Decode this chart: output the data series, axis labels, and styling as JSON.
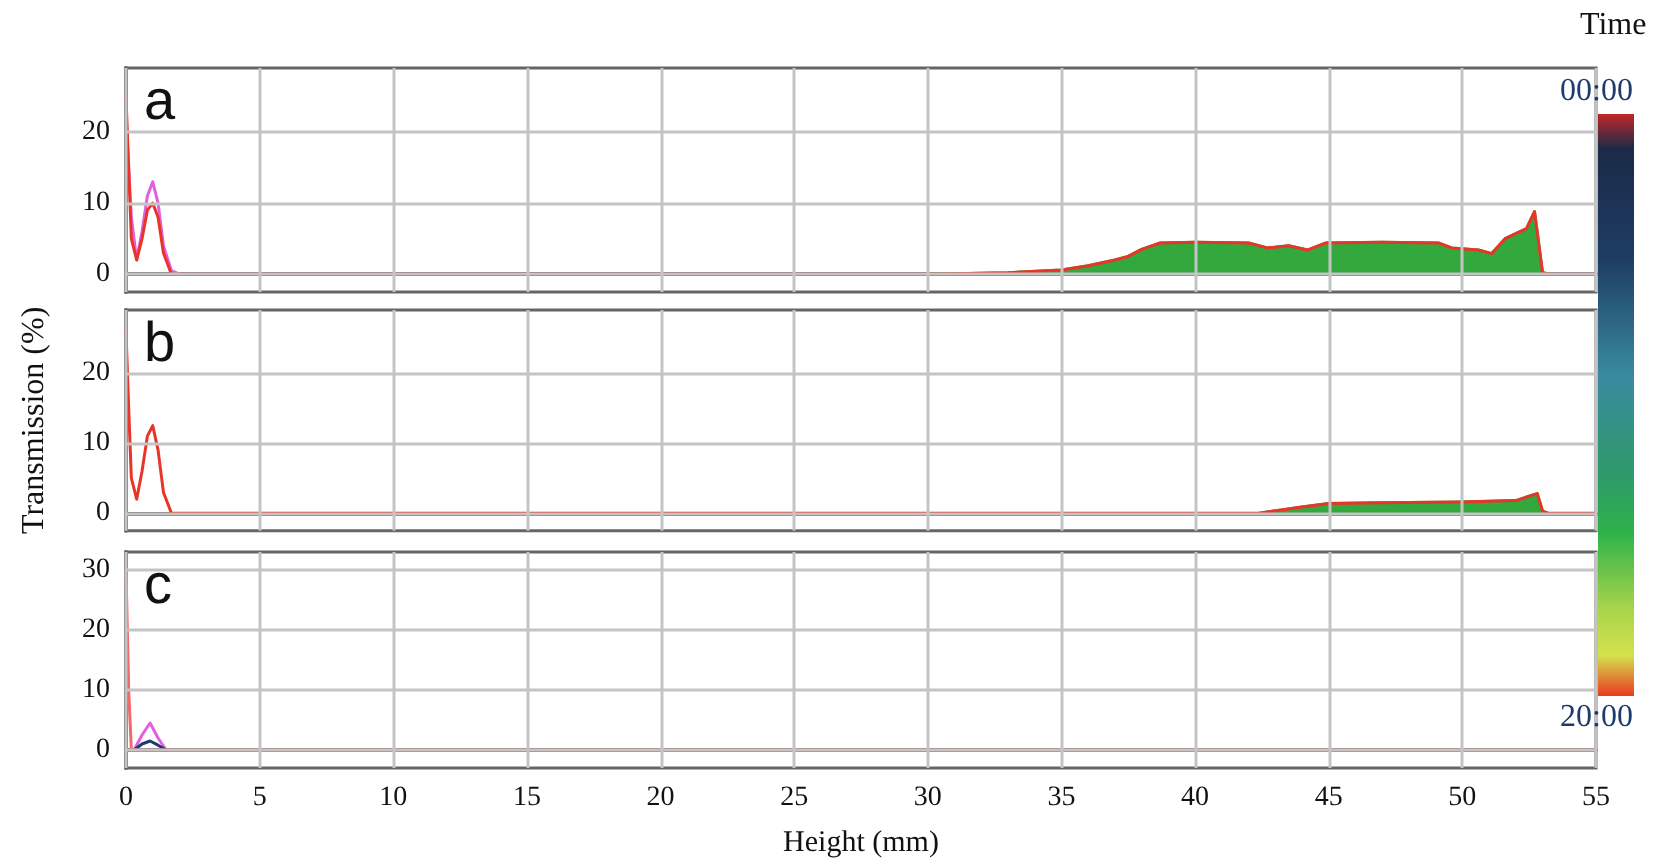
{
  "chart_data": [
    {
      "type": "line",
      "annotations": [
        "a",
        "00:00",
        "20:00"
      ],
      "clabel": "Time",
      "xlim": [
        0,
        55
      ],
      "xticks": [
        0,
        5,
        10,
        15,
        20,
        25,
        30,
        35,
        40,
        45,
        50,
        55
      ],
      "ylim": [
        -2.5,
        29
      ],
      "yticks": [
        0,
        10,
        20
      ],
      "grid": true,
      "tick_labels": "y",
      "series": [
        {
          "type": "area",
          "color": "#33a83c",
          "x": [
            30,
            33,
            35,
            36,
            37,
            37.5,
            38,
            38.7,
            40,
            42,
            42.7,
            43.5,
            44.2,
            44.9,
            47,
            49.1,
            49.6,
            50.6,
            51.1,
            51.6,
            52.4,
            52.7,
            53,
            53.3
          ],
          "values": [
            0,
            0.2,
            0.6,
            1.2,
            2,
            2.5,
            3.5,
            4.4,
            4.5,
            4.4,
            3.7,
            4,
            3.4,
            4.4,
            4.5,
            4.4,
            3.7,
            3.4,
            2.9,
            5,
            6.4,
            8.8,
            0.2,
            0
          ]
        },
        {
          "color": "#e060e0",
          "x": [
            0,
            0.2,
            0.4,
            0.6,
            0.8,
            1,
            1.2,
            1.4,
            1.7,
            2
          ],
          "values": [
            22,
            8,
            2,
            6,
            11,
            13,
            10,
            4,
            0.5,
            0
          ]
        },
        {
          "color": "#e8352a",
          "x": [
            0,
            0.1,
            0.2,
            0.4,
            0.6,
            0.8,
            1,
            1.2,
            1.4,
            1.7,
            25,
            30,
            33,
            35,
            36,
            37,
            37.5,
            38,
            38.7,
            40,
            42,
            42.7,
            43.5,
            44.2,
            44.9,
            47,
            49.1,
            49.6,
            50.6,
            51.1,
            51.6,
            52.4,
            52.7,
            53,
            53.3,
            55
          ],
          "values": [
            25,
            15,
            5,
            2,
            5,
            9,
            10,
            8,
            3,
            0,
            0,
            0,
            0.2,
            0.6,
            1.2,
            2,
            2.5,
            3.5,
            4.4,
            4.5,
            4.4,
            3.7,
            4,
            3.4,
            4.4,
            4.5,
            4.4,
            3.7,
            3.4,
            2.9,
            5,
            6.4,
            8.8,
            0.2,
            0,
            0
          ]
        }
      ]
    },
    {
      "type": "line",
      "annotations": [
        "b"
      ],
      "ylabel": "Transmission (%)",
      "xlim": [
        0,
        55
      ],
      "xticks": [
        0,
        5,
        10,
        15,
        20,
        25,
        30,
        35,
        40,
        45,
        50,
        55
      ],
      "ylim": [
        -2.5,
        29
      ],
      "yticks": [
        0,
        10,
        20
      ],
      "grid": true,
      "tick_labels": "y",
      "series": [
        {
          "type": "area",
          "color": "#33a83c",
          "x": [
            42.4,
            44,
            45,
            47,
            50,
            52,
            52.8,
            53,
            53.2
          ],
          "values": [
            0,
            0.9,
            1.4,
            1.5,
            1.6,
            1.8,
            2.8,
            0.3,
            0
          ]
        },
        {
          "color": "#e8352a",
          "x": [
            0,
            0.1,
            0.2,
            0.4,
            0.6,
            0.8,
            1,
            1.2,
            1.4,
            1.7,
            42.4,
            44,
            45,
            47,
            50,
            52,
            52.8,
            53,
            53.2,
            55
          ],
          "values": [
            26,
            15,
            5,
            2,
            6,
            11,
            12.5,
            9,
            3,
            0,
            0,
            0.9,
            1.4,
            1.5,
            1.6,
            1.8,
            2.8,
            0.3,
            0,
            0
          ]
        }
      ]
    },
    {
      "type": "line",
      "annotations": [
        "c"
      ],
      "xlabel": "Height (mm)",
      "xlim": [
        0,
        55
      ],
      "xticks": [
        0,
        5,
        10,
        15,
        20,
        25,
        30,
        35,
        40,
        45,
        50,
        55
      ],
      "ylim": [
        -3,
        33
      ],
      "yticks": [
        0,
        10,
        20,
        30
      ],
      "grid": true,
      "series": [
        {
          "color": "#e060e0",
          "x": [
            0.3,
            0.6,
            0.9,
            1.2,
            1.5
          ],
          "values": [
            0,
            2.5,
            4.5,
            2,
            0
          ]
        },
        {
          "color": "#1f3a6e",
          "x": [
            0.3,
            0.6,
            0.9,
            1.2,
            1.5
          ],
          "values": [
            0,
            1,
            1.5,
            0.8,
            0
          ]
        },
        {
          "color": "#f06a6a",
          "x": [
            0,
            0.1,
            0.2,
            1.6,
            55
          ],
          "values": [
            30,
            10,
            0,
            0,
            0
          ]
        }
      ]
    }
  ]
}
